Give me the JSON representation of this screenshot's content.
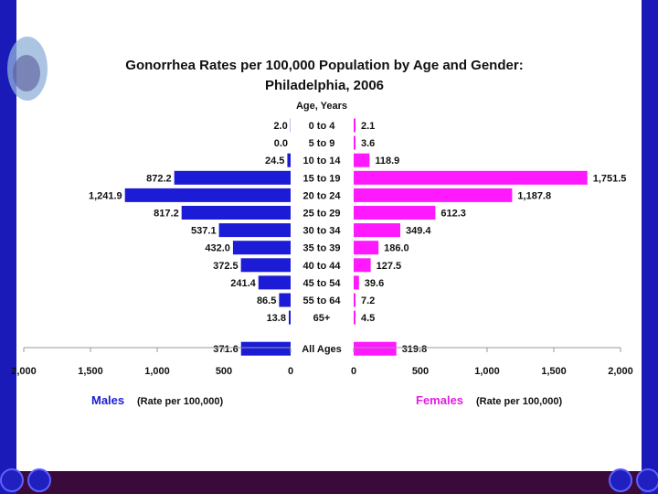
{
  "colors": {
    "male": "#1c1cd6",
    "female": "#ff19ff",
    "background": "#1a1aa8",
    "slide": "#ffffff"
  },
  "chart_data": {
    "type": "bar",
    "subtype": "population-pyramid",
    "title_line1": "Gonorrhea Rates per 100,000 Population by Age and Gender:",
    "title_line2": "Philadelphia, 2006",
    "category_header": "Age, Years",
    "categories": [
      "0 to 4",
      "5 to 9",
      "10 to 14",
      "15 to 19",
      "20 to 24",
      "25 to 29",
      "30 to 34",
      "35 to 39",
      "40 to 44",
      "45 to 54",
      "55 to 64",
      "65+",
      "All Ages"
    ],
    "series": [
      {
        "name": "Males",
        "note": "(Rate per 100,000)",
        "values": [
          2.0,
          0.0,
          24.5,
          872.2,
          1241.9,
          817.2,
          537.1,
          432.0,
          372.5,
          241.4,
          86.5,
          13.8,
          371.6
        ],
        "labels": [
          "2.0",
          "0.0",
          "24.5",
          "872.2",
          "1,241.9",
          "817.2",
          "537.1",
          "432.0",
          "372.5",
          "241.4",
          "86.5",
          "13.8",
          "371.6"
        ]
      },
      {
        "name": "Females",
        "note": "(Rate per 100,000)",
        "values": [
          2.1,
          3.6,
          118.9,
          1751.5,
          1187.8,
          612.3,
          349.4,
          186.0,
          127.5,
          39.6,
          7.2,
          4.5,
          319.8
        ],
        "labels": [
          "2.1",
          "3.6",
          "118.9",
          "1,751.5",
          "1,187.8",
          "612.3",
          "349.4",
          "186.0",
          "127.5",
          "39.6",
          "7.2",
          "4.5",
          "319.8"
        ]
      }
    ],
    "xlim": [
      0,
      2000
    ],
    "xticks": [
      0,
      500,
      1000,
      1500,
      2000
    ],
    "xtick_labels": [
      "0",
      "500",
      "1,000",
      "1,500",
      "2,000"
    ]
  }
}
